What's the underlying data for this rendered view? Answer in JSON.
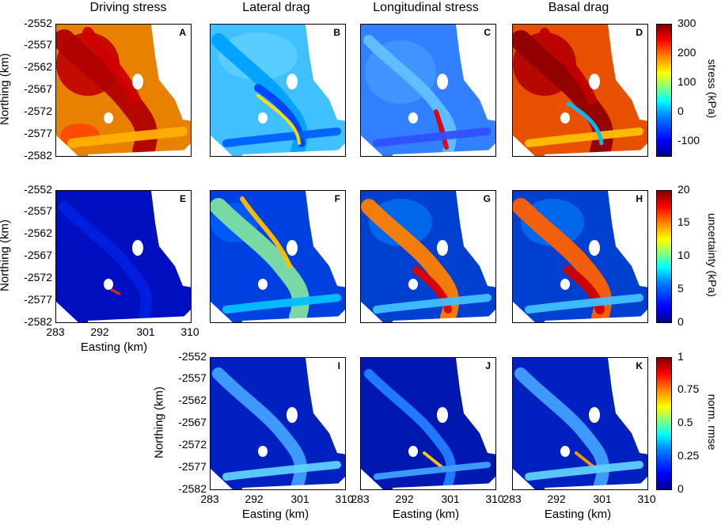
{
  "column_titles": [
    "Driving stress",
    "Lateral drag",
    "Longitudinal stress",
    "Basal drag"
  ],
  "panel_letters": [
    "A",
    "B",
    "C",
    "D",
    "E",
    "F",
    "G",
    "H",
    "I",
    "J",
    "K"
  ],
  "axes": {
    "ylabel": "Northing (km)",
    "xlabel": "Easting (km)",
    "yticks": [
      "-2552",
      "-2557",
      "-2562",
      "-2567",
      "-2572",
      "-2577",
      "-2582"
    ],
    "xticks": [
      "283",
      "292",
      "301",
      "310"
    ]
  },
  "colorbars": [
    {
      "label": "stress (kPa)",
      "ticks": [
        "300",
        "200",
        "100",
        "0",
        "-100"
      ]
    },
    {
      "label": "uncertainty (kPa)",
      "ticks": [
        "20",
        "15",
        "10",
        "5",
        "0"
      ]
    },
    {
      "label": "norm. rmse",
      "ticks": [
        "1",
        "0.75",
        "0.5",
        "0.25",
        "0"
      ]
    }
  ],
  "chart_data": {
    "type": "heatmap",
    "colormap": "jet",
    "x_range_km": [
      283,
      310
    ],
    "y_range_km": [
      -2582,
      -2552
    ],
    "rows": [
      {
        "quantity": "stress",
        "units": "kPa",
        "clim": [
          -150,
          300
        ],
        "panels": [
          "A",
          "B",
          "C",
          "D"
        ]
      },
      {
        "quantity": "uncertainty",
        "units": "kPa",
        "clim": [
          0,
          20
        ],
        "panels": [
          "E",
          "F",
          "G",
          "H"
        ]
      },
      {
        "quantity": "norm. rmse",
        "units": "",
        "clim": [
          0,
          1
        ],
        "panels": [
          "I",
          "J",
          "K"
        ]
      }
    ]
  }
}
